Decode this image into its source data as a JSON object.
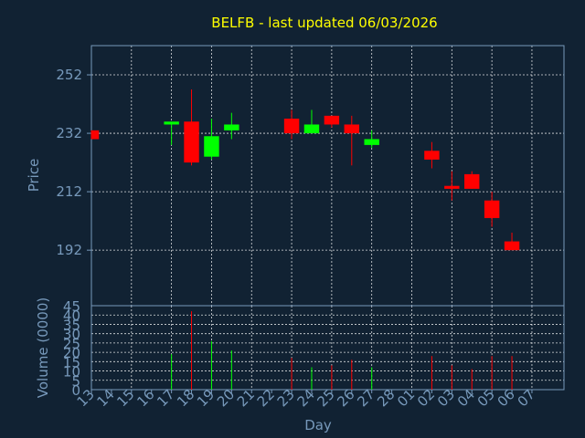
{
  "chart_data": {
    "type": "candlestick",
    "title": "BELFB - last updated 06/03/2026",
    "xlabel": "Day",
    "colors": {
      "up": "#00ff00",
      "down": "#ff0000",
      "background": "#112233",
      "axis_text": "#7799bb",
      "title": "#ffff00",
      "grid": "#ffffff"
    },
    "grid": true,
    "x_ticks": [
      "13",
      "14",
      "15",
      "16",
      "17",
      "18",
      "19",
      "20",
      "21",
      "22",
      "23",
      "24",
      "25",
      "26",
      "27",
      "28",
      "01",
      "02",
      "03",
      "04",
      "05",
      "06",
      "07"
    ],
    "price_panel": {
      "ylabel": "Price",
      "ylim": [
        173,
        262
      ],
      "y_ticks": [
        192,
        212,
        232,
        252
      ],
      "candles": [
        {
          "day": "13",
          "open": 233,
          "high": 233,
          "low": 230,
          "close": 230
        },
        {
          "day": "17",
          "open": 235,
          "high": 236,
          "low": 228,
          "close": 236
        },
        {
          "day": "18",
          "open": 236,
          "high": 247,
          "low": 221,
          "close": 222
        },
        {
          "day": "19",
          "open": 224,
          "high": 237,
          "low": 223,
          "close": 231
        },
        {
          "day": "20",
          "open": 233,
          "high": 239,
          "low": 230,
          "close": 235
        },
        {
          "day": "23",
          "open": 237,
          "high": 240,
          "low": 230,
          "close": 232
        },
        {
          "day": "24",
          "open": 232,
          "high": 240,
          "low": 232,
          "close": 235
        },
        {
          "day": "25",
          "open": 238,
          "high": 238,
          "low": 234,
          "close": 235
        },
        {
          "day": "26",
          "open": 235,
          "high": 238,
          "low": 221,
          "close": 232
        },
        {
          "day": "27",
          "open": 228,
          "high": 233,
          "low": 227,
          "close": 230
        },
        {
          "day": "02",
          "open": 226,
          "high": 229,
          "low": 220,
          "close": 223
        },
        {
          "day": "03",
          "open": 214,
          "high": 219,
          "low": 209,
          "close": 213
        },
        {
          "day": "04",
          "open": 218,
          "high": 219,
          "low": 213,
          "close": 213
        },
        {
          "day": "05",
          "open": 209,
          "high": 212,
          "low": 200,
          "close": 203
        },
        {
          "day": "06",
          "open": 195,
          "high": 198,
          "low": 192,
          "close": 192
        }
      ]
    },
    "volume_panel": {
      "ylabel": "Volume (0000)",
      "ylim": [
        0,
        45
      ],
      "y_ticks": [
        0,
        5,
        10,
        15,
        20,
        25,
        30,
        35,
        40,
        45
      ],
      "bars": [
        {
          "day": "17",
          "value": 19,
          "dir": "up"
        },
        {
          "day": "18",
          "value": 42,
          "dir": "down"
        },
        {
          "day": "19",
          "value": 26,
          "dir": "up"
        },
        {
          "day": "20",
          "value": 21,
          "dir": "up"
        },
        {
          "day": "23",
          "value": 17,
          "dir": "down"
        },
        {
          "day": "24",
          "value": 12,
          "dir": "up"
        },
        {
          "day": "25",
          "value": 13,
          "dir": "down"
        },
        {
          "day": "26",
          "value": 16,
          "dir": "down"
        },
        {
          "day": "27",
          "value": 12,
          "dir": "up"
        },
        {
          "day": "02",
          "value": 18,
          "dir": "down"
        },
        {
          "day": "03",
          "value": 13,
          "dir": "down"
        },
        {
          "day": "04",
          "value": 11,
          "dir": "down"
        },
        {
          "day": "05",
          "value": 18,
          "dir": "down"
        },
        {
          "day": "06",
          "value": 18,
          "dir": "down"
        }
      ]
    }
  }
}
